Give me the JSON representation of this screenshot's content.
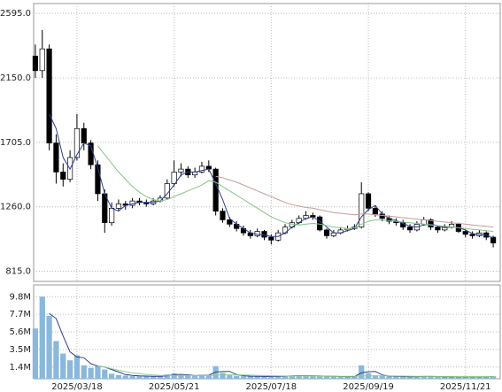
{
  "chart_data": [
    {
      "type": "candlestick",
      "open": [
        2300,
        2200,
        2350,
        1700,
        1500,
        1450,
        1600,
        1800,
        1700,
        1550,
        1350,
        1150,
        1250,
        1280,
        1270,
        1300,
        1290,
        1280,
        1300,
        1320,
        1420,
        1500,
        1520,
        1480,
        1500,
        1540,
        1520,
        1230,
        1170,
        1140,
        1110,
        1080,
        1060,
        1090,
        1050,
        1030,
        1080,
        1120,
        1150,
        1180,
        1200,
        1190,
        1100,
        1060,
        1080,
        1100,
        1110,
        1120,
        1350,
        1250,
        1210,
        1180,
        1160,
        1150,
        1120,
        1100,
        1140,
        1170,
        1120,
        1100,
        1120,
        1140,
        1090,
        1070,
        1060,
        1080,
        1050
      ],
      "high": [
        2380,
        2480,
        2380,
        1760,
        1560,
        1650,
        1900,
        1840,
        1720,
        1580,
        1380,
        1290,
        1310,
        1300,
        1320,
        1320,
        1310,
        1320,
        1340,
        1450,
        1580,
        1560,
        1540,
        1530,
        1570,
        1580,
        1530,
        1250,
        1190,
        1160,
        1130,
        1100,
        1110,
        1100,
        1070,
        1100,
        1140,
        1170,
        1200,
        1230,
        1220,
        1200,
        1110,
        1100,
        1120,
        1130,
        1140,
        1430,
        1360,
        1270,
        1230,
        1200,
        1180,
        1170,
        1140,
        1160,
        1190,
        1180,
        1130,
        1140,
        1160,
        1150,
        1100,
        1090,
        1100,
        1090,
        1060
      ],
      "low": [
        2150,
        2150,
        1650,
        1420,
        1400,
        1430,
        1580,
        1650,
        1520,
        1300,
        1080,
        1130,
        1230,
        1240,
        1250,
        1270,
        1260,
        1270,
        1290,
        1310,
        1400,
        1470,
        1460,
        1460,
        1490,
        1500,
        1200,
        1150,
        1120,
        1090,
        1060,
        1040,
        1050,
        1030,
        1000,
        1020,
        1070,
        1110,
        1140,
        1170,
        1170,
        1090,
        1040,
        1050,
        1070,
        1090,
        1100,
        1110,
        1230,
        1190,
        1160,
        1140,
        1130,
        1100,
        1080,
        1090,
        1130,
        1100,
        1080,
        1090,
        1110,
        1080,
        1050,
        1040,
        1050,
        1030,
        980
      ],
      "close": [
        2200,
        2350,
        1700,
        1500,
        1450,
        1600,
        1800,
        1700,
        1550,
        1350,
        1150,
        1250,
        1280,
        1270,
        1300,
        1290,
        1280,
        1300,
        1320,
        1420,
        1500,
        1520,
        1480,
        1500,
        1540,
        1520,
        1230,
        1170,
        1140,
        1110,
        1080,
        1060,
        1090,
        1050,
        1030,
        1080,
        1120,
        1150,
        1180,
        1200,
        1190,
        1100,
        1060,
        1080,
        1100,
        1110,
        1120,
        1350,
        1250,
        1210,
        1180,
        1160,
        1150,
        1120,
        1100,
        1140,
        1170,
        1120,
        1100,
        1120,
        1140,
        1090,
        1070,
        1060,
        1080,
        1050,
        1010
      ],
      "lines": [
        {
          "color": "#2b3f8f",
          "values": [
            null,
            null,
            1900,
            1800,
            1600,
            1520,
            1620,
            1700,
            1680,
            1530,
            1350,
            1250,
            1230,
            1270,
            1280,
            1290,
            1290,
            1290,
            1300,
            1350,
            1410,
            1480,
            1500,
            1500,
            1510,
            1520,
            1420,
            1310,
            1180,
            1140,
            1110,
            1080,
            1070,
            1065,
            1055,
            1055,
            1080,
            1120,
            1150,
            1180,
            1190,
            1160,
            1120,
            1080,
            1080,
            1095,
            1110,
            1190,
            1240,
            1270,
            1210,
            1180,
            1165,
            1145,
            1125,
            1120,
            1135,
            1140,
            1130,
            1115,
            1120,
            1115,
            1100,
            1075,
            1070,
            1065,
            1045
          ]
        },
        {
          "color": "#86c486",
          "values": [
            null,
            null,
            null,
            null,
            null,
            null,
            null,
            null,
            null,
            1680,
            1620,
            1560,
            1500,
            1450,
            1400,
            1360,
            1330,
            1310,
            1300,
            1310,
            1330,
            1350,
            1370,
            1390,
            1410,
            1440,
            1430,
            1400,
            1370,
            1340,
            1310,
            1280,
            1250,
            1220,
            1190,
            1170,
            1150,
            1140,
            1135,
            1140,
            1145,
            1140,
            1130,
            1120,
            1115,
            1110,
            1115,
            1140,
            1160,
            1170,
            1170,
            1165,
            1160,
            1155,
            1150,
            1145,
            1140,
            1135,
            1130,
            1125,
            1120,
            1115,
            1110,
            1105,
            1100,
            1095,
            1090
          ]
        },
        {
          "color": "#c99a9a",
          "values": [
            null,
            null,
            null,
            null,
            null,
            null,
            null,
            null,
            null,
            null,
            null,
            null,
            null,
            null,
            null,
            null,
            null,
            null,
            null,
            null,
            null,
            null,
            null,
            null,
            null,
            null,
            1470,
            1460,
            1445,
            1430,
            1410,
            1390,
            1370,
            1350,
            1330,
            1310,
            1290,
            1275,
            1265,
            1255,
            1250,
            1240,
            1230,
            1220,
            1215,
            1210,
            1205,
            1210,
            1210,
            1205,
            1200,
            1195,
            1190,
            1185,
            1180,
            1175,
            1170,
            1165,
            1160,
            1155,
            1150,
            1145,
            1140,
            1135,
            1130,
            1125,
            1120
          ]
        }
      ],
      "ylim": [
        745,
        2663
      ],
      "yticks": [
        {
          "value": 815,
          "label": "815.0"
        },
        {
          "value": 1260,
          "label": "1260.0"
        },
        {
          "value": 1705,
          "label": "1705.0"
        },
        {
          "value": 2150,
          "label": "2150.0"
        },
        {
          "value": 2595,
          "label": "2595.0"
        }
      ],
      "grid": true
    },
    {
      "type": "bar",
      "categories": [
        null,
        null,
        null,
        null,
        null,
        null,
        "2025/03/18",
        null,
        null,
        null,
        null,
        null,
        null,
        null,
        null,
        null,
        null,
        null,
        null,
        null,
        "2025/05/21",
        null,
        null,
        null,
        null,
        null,
        null,
        null,
        null,
        null,
        null,
        null,
        null,
        null,
        "2025/07/18",
        null,
        null,
        null,
        null,
        null,
        null,
        null,
        null,
        null,
        null,
        null,
        null,
        null,
        "2025/09/19",
        null,
        null,
        null,
        null,
        null,
        null,
        null,
        null,
        null,
        null,
        null,
        null,
        null,
        "2025/11/21",
        null,
        null,
        null,
        null
      ],
      "values": [
        6000000,
        9800000,
        7500000,
        4500000,
        3000000,
        2200000,
        2800000,
        1600000,
        1300000,
        1500000,
        1100000,
        600000,
        450000,
        380000,
        330000,
        300000,
        320000,
        290000,
        280000,
        520000,
        650000,
        420000,
        380000,
        350000,
        460000,
        400000,
        1500000,
        700000,
        450000,
        350000,
        300000,
        280000,
        300000,
        260000,
        250000,
        320000,
        360000,
        340000,
        380000,
        360000,
        300000,
        330000,
        280000,
        260000,
        250000,
        240000,
        260000,
        1600000,
        650000,
        400000,
        320000,
        280000,
        260000,
        240000,
        230000,
        280000,
        300000,
        260000,
        240000,
        230000,
        250000,
        260000,
        230000,
        220000,
        240000,
        250000,
        300000
      ],
      "color": "#8ab8dc",
      "lines": [
        {
          "color": "#2b3f8f",
          "values": [
            null,
            null,
            7800000,
            7200000,
            5100000,
            3200000,
            2600000,
            2500000,
            1800000,
            1500000,
            1400000,
            1100000,
            800000,
            500000,
            400000,
            350000,
            320000,
            300000,
            290000,
            360000,
            480000,
            520000,
            480000,
            380000,
            400000,
            420000,
            800000,
            860000,
            880000,
            500000,
            360000,
            310000,
            290000,
            280000,
            270000,
            280000,
            310000,
            340000,
            360000,
            360000,
            350000,
            330000,
            310000,
            290000,
            260000,
            250000,
            250000,
            700000,
            840000,
            880000,
            450000,
            320000,
            290000,
            260000,
            240000,
            250000,
            270000,
            280000,
            260000,
            240000,
            240000,
            245000,
            245000,
            235000,
            235000,
            245000,
            265000
          ]
        },
        {
          "color": "#8fcf8f",
          "values": [
            null,
            null,
            null,
            null,
            null,
            null,
            null,
            null,
            null,
            1500000,
            1400000,
            1200000,
            1000000,
            850000,
            700000,
            600000,
            500000,
            450000,
            400000,
            390000,
            400000,
            400000,
            390000,
            380000,
            380000,
            390000,
            450000,
            470000,
            470000,
            460000,
            450000,
            430000,
            400000,
            380000,
            360000,
            340000,
            330000,
            320000,
            320000,
            315000,
            310000,
            310000,
            305000,
            300000,
            300000,
            295000,
            290000,
            330000,
            340000,
            345000,
            345000,
            340000,
            330000,
            320000,
            310000,
            300000,
            290000,
            285000,
            280000,
            275000,
            270000,
            265000,
            262000,
            260000,
            258000,
            255000,
            255000
          ]
        }
      ],
      "ylim": [
        0,
        11200000
      ],
      "yticks": [
        {
          "value": 1400000,
          "label": "1.4M"
        },
        {
          "value": 3500000,
          "label": "3.5M"
        },
        {
          "value": 5600000,
          "label": "5.6M"
        },
        {
          "value": 7700000,
          "label": "7.7M"
        },
        {
          "value": 9800000,
          "label": "9.8M"
        }
      ],
      "grid": true
    }
  ]
}
